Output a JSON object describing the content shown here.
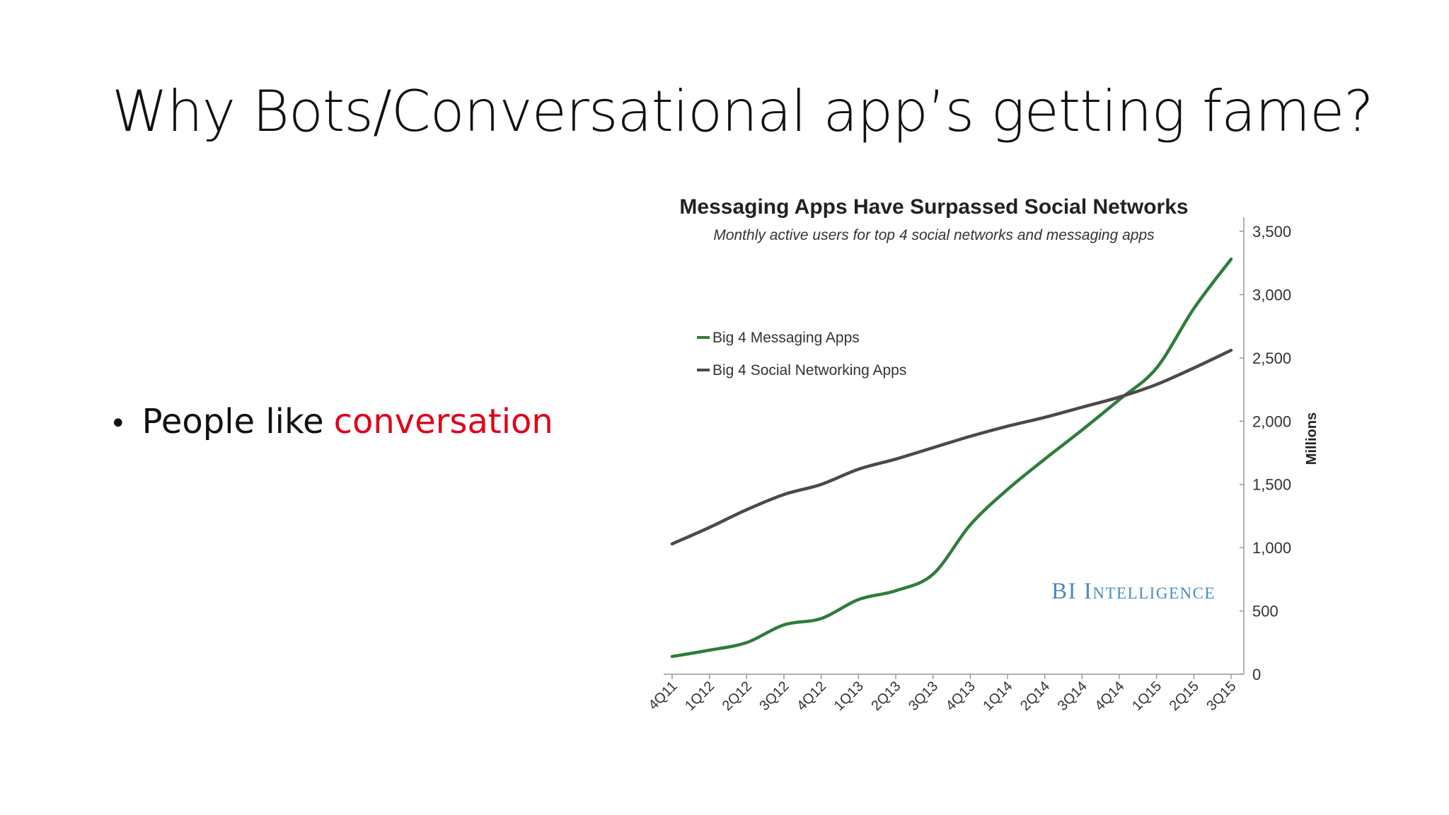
{
  "slide": {
    "title": "Why Bots/Conversational app’s getting fame?",
    "bullets": [
      {
        "text": "People like",
        "highlight": "conversation",
        "highlight_color": "#e0001b"
      }
    ]
  },
  "chart_data": {
    "type": "line",
    "title": "Messaging Apps Have Surpassed Social Networks",
    "subtitle": "Monthly active users for top 4 social networks and messaging apps",
    "xlabel": "",
    "ylabel": "Millions",
    "categories": [
      "4Q11",
      "1Q12",
      "2Q12",
      "3Q12",
      "4Q12",
      "1Q13",
      "2Q13",
      "3Q13",
      "4Q13",
      "1Q14",
      "2Q14",
      "3Q14",
      "4Q14",
      "1Q15",
      "2Q15",
      "3Q15"
    ],
    "y_ticks": [
      "0",
      "500",
      "1,000",
      "1,500",
      "2,000",
      "2,500",
      "3,000",
      "3,500"
    ],
    "ylim": [
      0,
      3500
    ],
    "y_axis_side": "right",
    "grid": false,
    "legend_position": "upper-left",
    "watermark": "BI Intelligence",
    "watermark_color": "#4a8cbf",
    "series": [
      {
        "name": "Big 4 Messaging Apps",
        "color": "#2e7d3a",
        "values": [
          140,
          190,
          250,
          390,
          440,
          590,
          660,
          790,
          1180,
          1460,
          1700,
          1930,
          2170,
          2420,
          2890,
          3280
        ]
      },
      {
        "name": "Big 4 Social Networking Apps",
        "color": "#4a4a4a",
        "values": [
          1030,
          1160,
          1300,
          1420,
          1500,
          1620,
          1700,
          1790,
          1880,
          1960,
          2030,
          2110,
          2190,
          2290,
          2420,
          2560
        ]
      }
    ]
  }
}
